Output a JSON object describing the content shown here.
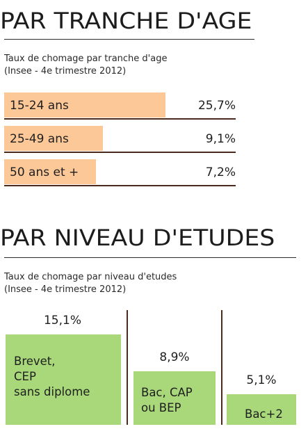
{
  "colors": {
    "age_bar": "#fcc898",
    "study_bar": "#a9d87a",
    "divider": "#4a2a1c"
  },
  "age_section": {
    "title": "PAR TRANCHE D'AGE",
    "subtitle_line1": "Taux de chomage par tranche d'age",
    "subtitle_line2": "(Insee - 4e trimestre 2012)"
  },
  "study_section": {
    "title": "PAR NIVEAU D'ETUDES",
    "subtitle_line1": "Taux de chomage par niveau d'etudes",
    "subtitle_line2": "(Insee - 4e trimestre 2012)"
  },
  "chart_data": [
    {
      "type": "bar",
      "orientation": "horizontal",
      "title": "PAR TRANCHE D'AGE",
      "subtitle": "Taux de chomage par tranche d'age (Insee - 4e trimestre 2012)",
      "categories": [
        "15-24 ans",
        "25-49 ans",
        "50 ans et +"
      ],
      "values": [
        25.7,
        9.1,
        7.2
      ],
      "value_labels": [
        "25,7%",
        "9,1%",
        "7,2%"
      ],
      "unit": "%"
    },
    {
      "type": "bar",
      "orientation": "vertical",
      "title": "PAR NIVEAU D'ETUDES",
      "subtitle": "Taux de chomage par niveau d'etudes (Insee - 4e trimestre 2012)",
      "categories": [
        "Brevet,\nCEP\nsans diplome",
        "Bac, CAP\nou BEP",
        "Bac+2"
      ],
      "values": [
        15.1,
        8.9,
        5.1
      ],
      "value_labels": [
        "15,1%",
        "8,9%",
        "5,1%"
      ],
      "unit": "%"
    }
  ]
}
